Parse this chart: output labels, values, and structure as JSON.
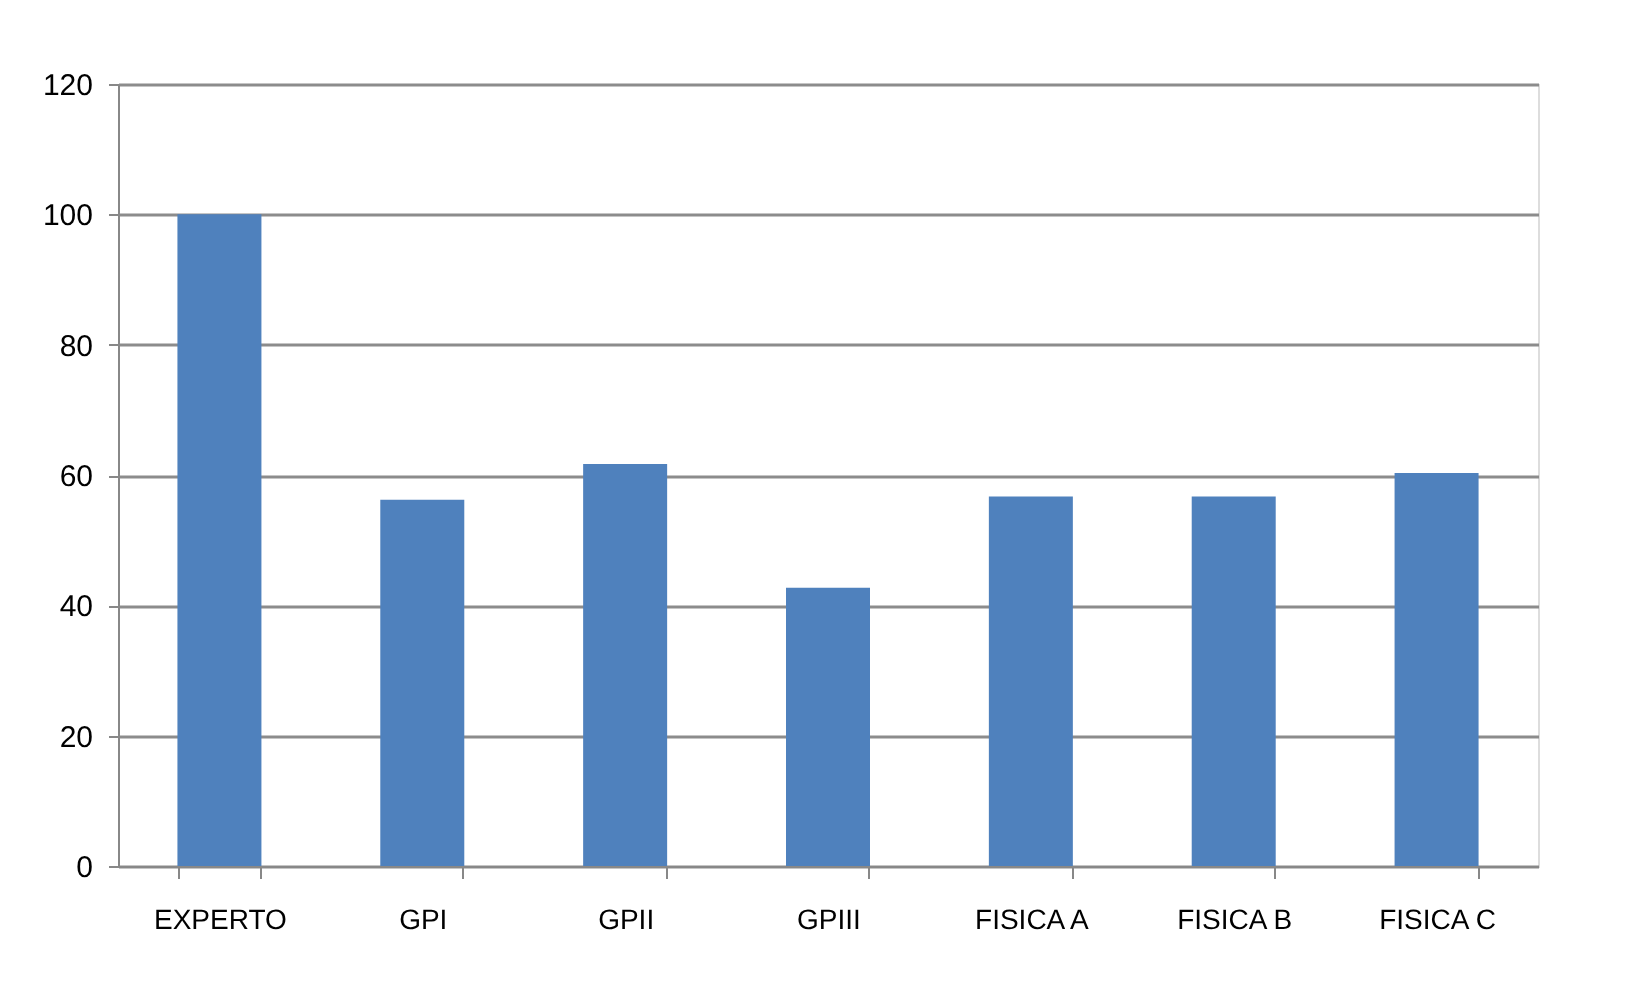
{
  "chart_data": {
    "type": "bar",
    "categories": [
      "EXPERTO",
      "GPI",
      "GPII",
      "GPIII",
      "FISICA A",
      "FISICA B",
      "FISICA C"
    ],
    "values": [
      100,
      56.2,
      61.7,
      42.7,
      56.7,
      56.7,
      60.3
    ],
    "color": "#4f81bd",
    "ylim": [
      0,
      120
    ],
    "yticks": [
      0,
      20,
      40,
      60,
      80,
      100,
      120
    ],
    "grid": "y"
  }
}
